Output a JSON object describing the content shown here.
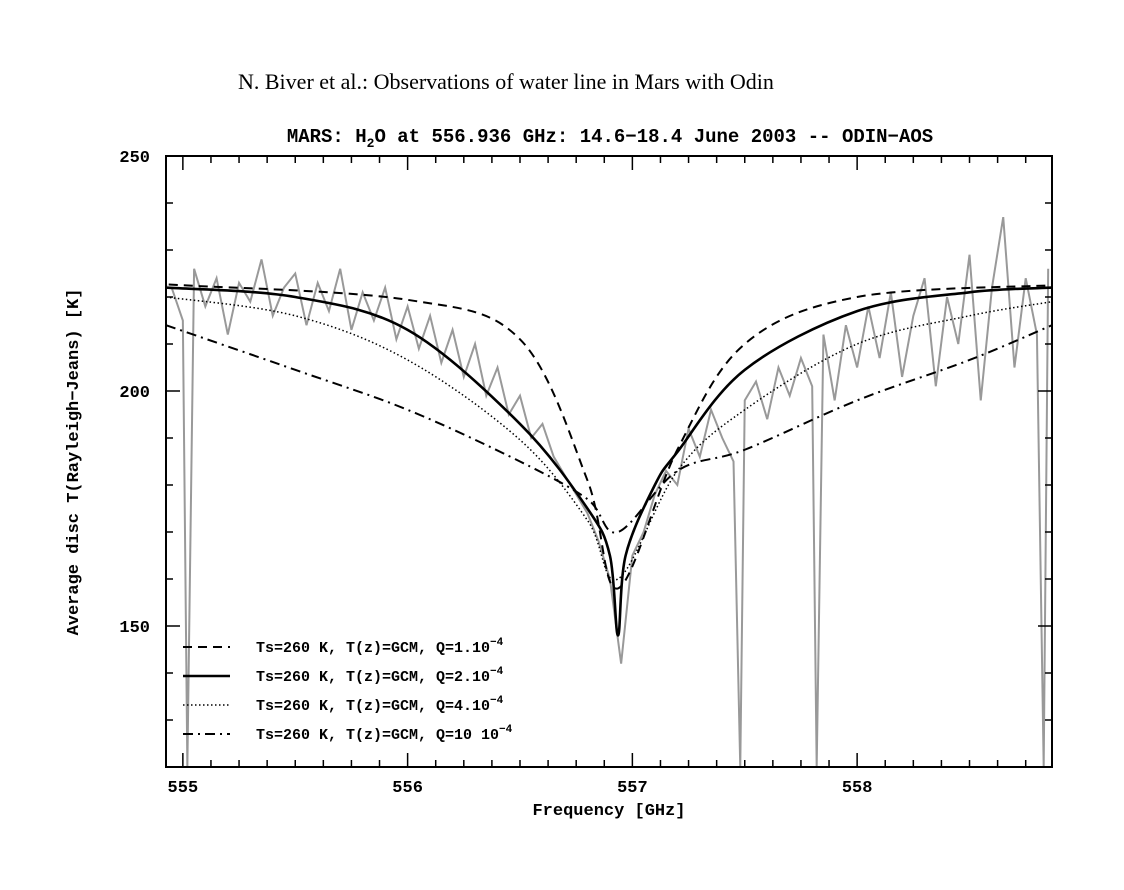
{
  "header": "N. Biver et al.: Observations of water line in Mars with Odin",
  "chart_data": {
    "type": "line",
    "title": {
      "pre": "MARS: H",
      "sub": "2",
      "post": "O at 556.936 GHz: 14.6−18.4 June 2003 -- ODIN−AOS"
    },
    "xlabel": "Frequency [GHz]",
    "ylabel": "Average disc T(Rayleigh−Jeans) [K]",
    "xlim": [
      554.925,
      558.867
    ],
    "ylim": [
      120,
      250
    ],
    "xticks": [
      555,
      556,
      557,
      558
    ],
    "yticks": [
      150,
      200,
      250
    ],
    "grid": false,
    "legend_position": "bottom-left",
    "observed": {
      "color": "#999999",
      "x": [
        554.95,
        555.0,
        555.02,
        555.05,
        555.1,
        555.15,
        555.2,
        555.25,
        555.3,
        555.35,
        555.4,
        555.45,
        555.5,
        555.55,
        555.6,
        555.65,
        555.7,
        555.75,
        555.8,
        555.85,
        555.9,
        555.95,
        556.0,
        556.05,
        556.1,
        556.15,
        556.2,
        556.25,
        556.3,
        556.35,
        556.4,
        556.45,
        556.5,
        556.55,
        556.6,
        556.65,
        556.7,
        556.75,
        556.8,
        556.85,
        556.9,
        556.95,
        557.0,
        557.05,
        557.1,
        557.15,
        557.2,
        557.25,
        557.3,
        557.35,
        557.4,
        557.45,
        557.48,
        557.5,
        557.55,
        557.6,
        557.65,
        557.7,
        557.75,
        557.8,
        557.82,
        557.85,
        557.9,
        557.95,
        558.0,
        558.05,
        558.1,
        558.15,
        558.2,
        558.25,
        558.3,
        558.35,
        558.4,
        558.45,
        558.5,
        558.55,
        558.6,
        558.65,
        558.7,
        558.75,
        558.8,
        558.83,
        558.85
      ],
      "y": [
        222,
        215,
        120,
        226,
        218,
        224,
        212,
        223,
        219,
        228,
        216,
        222,
        225,
        214,
        223,
        217,
        226,
        213,
        221,
        215,
        222,
        211,
        218,
        209,
        216,
        206,
        213,
        203,
        210,
        199,
        205,
        195,
        199,
        190,
        193,
        186,
        182,
        178,
        174,
        168,
        160,
        142,
        165,
        170,
        178,
        183,
        180,
        192,
        186,
        196,
        190,
        185,
        120,
        198,
        202,
        194,
        205,
        199,
        207,
        201,
        120,
        212,
        198,
        214,
        205,
        218,
        207,
        221,
        203,
        216,
        224,
        201,
        220,
        210,
        229,
        198,
        222,
        237,
        205,
        224,
        212,
        120,
        226
      ]
    },
    "series": [
      {
        "name": "Ts=260 K, T(z)=GCM, Q=1.10",
        "exp": "−4",
        "style": "dashed",
        "x": [
          554.925,
          555,
          556,
          556.5,
          556.8,
          556.936,
          557.2,
          557.5,
          558,
          558.867
        ],
        "y": [
          222.5,
          222.5,
          219.4,
          211,
          181,
          158,
          187.5,
          210,
          220,
          222.5
        ]
      },
      {
        "name": "Ts=260 K, T(z)=GCM, Q=2.10",
        "exp": "−4",
        "style": "solid",
        "x": [
          554.925,
          555.5,
          556,
          556.5,
          556.8,
          556.9,
          556.936,
          556.97,
          557.1,
          557.2,
          557.5,
          558,
          558.5,
          558.867
        ],
        "y": [
          222,
          220,
          213,
          193,
          175,
          165,
          148,
          165,
          180,
          187,
          204.5,
          217,
          221,
          222
        ]
      },
      {
        "name": "Ts=260 K, T(z)=GCM, Q=4.10",
        "exp": "−4",
        "style": "dotted",
        "x": [
          554.925,
          555.5,
          556,
          556.5,
          556.8,
          556.936,
          557.2,
          557.5,
          558,
          558.5,
          558.867
        ],
        "y": [
          220,
          216,
          206.6,
          189.6,
          172.5,
          160,
          183,
          196,
          210,
          216,
          219
        ]
      },
      {
        "name": "Ts=260 K, T(z)=GCM, Q=10 10",
        "exp": "−4",
        "style": "dashdot",
        "x": [
          554.925,
          555.5,
          556,
          556.5,
          556.8,
          556.936,
          557.2,
          557.5,
          558,
          558.5,
          558.867
        ],
        "y": [
          214,
          204.5,
          196,
          185,
          177,
          170,
          183,
          187.5,
          198,
          206.6,
          214
        ]
      }
    ]
  }
}
